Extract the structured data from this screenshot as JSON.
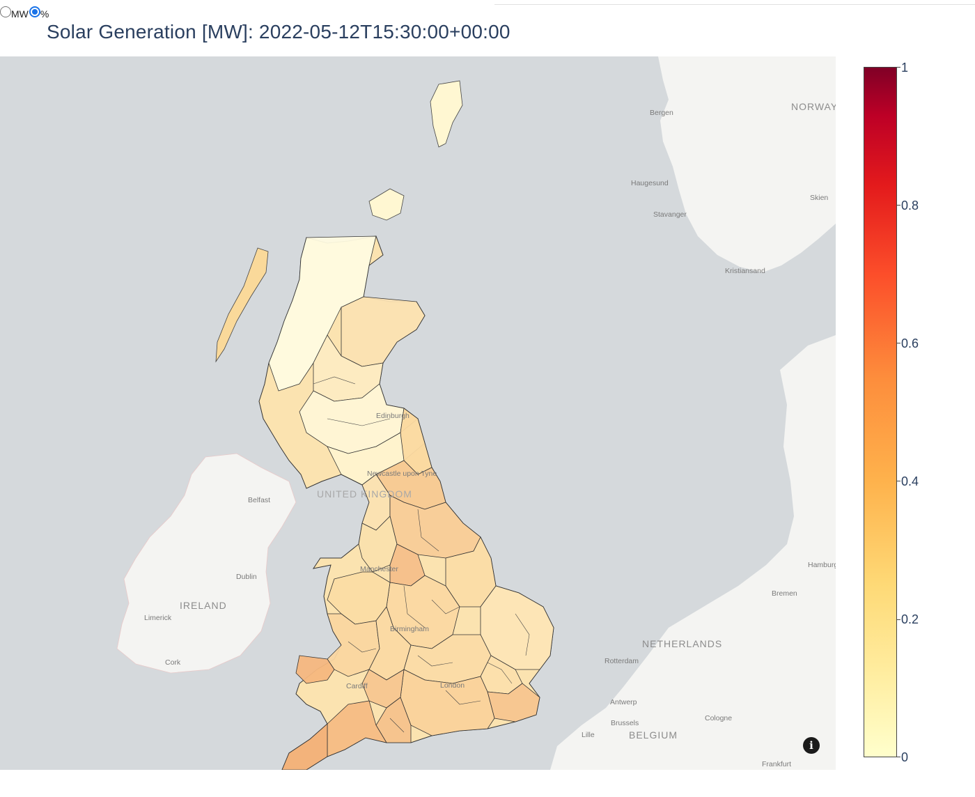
{
  "toggle": {
    "options": [
      {
        "label": "MW",
        "selected": false
      },
      {
        "label": "%",
        "selected": true
      }
    ]
  },
  "title": "Solar Generation [MW]: 2022-05-12T15:30:00+00:00",
  "map": {
    "countries": [
      "NORWAY",
      "IRELAND",
      "UNITED KINGDOM",
      "NETHERLANDS",
      "BELGIUM"
    ],
    "cities": [
      "Bergen",
      "Haugesund",
      "Stavanger",
      "Skien",
      "Kristiansand",
      "Belfast",
      "Dublin",
      "Limerick",
      "Cork",
      "Edinburgh",
      "Newcastle upon Tyne",
      "Manchester",
      "Birmingham",
      "Cardiff",
      "London",
      "Hamburg",
      "Bremen",
      "Rotterdam",
      "Antwerp",
      "Brussels",
      "Cologne",
      "Lille",
      "Frankfurt"
    ],
    "info_icon": "info-icon"
  },
  "colorbar": {
    "colorscale": [
      "#ffffcc",
      "#ffeda0",
      "#fed976",
      "#feb24c",
      "#fd8d3c",
      "#fc4e2a",
      "#e31a1c",
      "#bd0026",
      "#800026"
    ],
    "range": [
      0,
      1
    ],
    "ticks": [
      "1",
      "0.8",
      "0.6",
      "0.4",
      "0.2",
      "0"
    ]
  },
  "colors": {
    "water": "#d5d9dc",
    "land": "#f4f4f2",
    "title": "#2a3f5f",
    "region_border": "#333333"
  }
}
